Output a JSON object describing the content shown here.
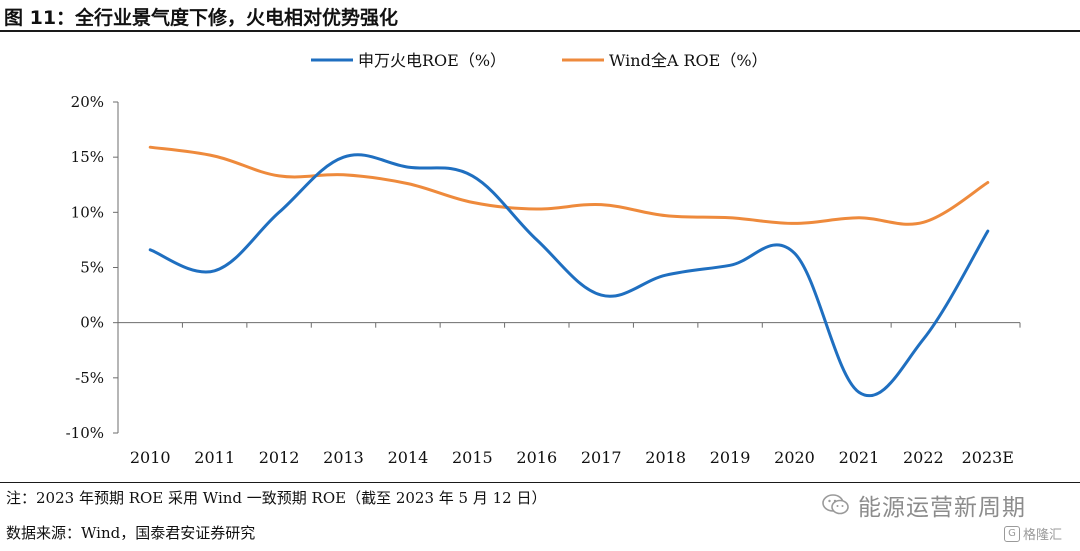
{
  "figure": {
    "title": "图 11：全行业景气度下修，火电相对优势强化",
    "note": "注：2023 年预期 ROE 采用 Wind 一致预期 ROE（截至 2023 年 5 月 12 日）",
    "source": "数据来源：Wind，国泰君安证券研究"
  },
  "watermark": {
    "name": "能源运营新周期",
    "icon": "wechat-icon",
    "badge_text": "格隆汇",
    "badge_icon": "g-logo-icon"
  },
  "chart_data": {
    "type": "line",
    "title": "",
    "xlabel": "",
    "ylabel": "",
    "categories": [
      "2010",
      "2011",
      "2012",
      "2013",
      "2014",
      "2015",
      "2016",
      "2017",
      "2018",
      "2019",
      "2020",
      "2021",
      "2022",
      "2023E"
    ],
    "ylim": [
      -10,
      20
    ],
    "yticks": [
      -10,
      -5,
      0,
      5,
      10,
      15,
      20
    ],
    "ytick_labels": [
      "-10%",
      "-5%",
      "0%",
      "5%",
      "10%",
      "15%",
      "20%"
    ],
    "grid": false,
    "legend_position": "top-center",
    "series": [
      {
        "name": "申万火电ROE（%）",
        "color": "#1f6fc0",
        "values": [
          6.6,
          4.7,
          10.0,
          15.0,
          14.1,
          13.3,
          7.5,
          2.5,
          4.3,
          5.2,
          6.3,
          -6.3,
          -1.5,
          8.3
        ]
      },
      {
        "name": "Wind全A ROE（%）",
        "color": "#ee8a3c",
        "values": [
          15.9,
          15.1,
          13.3,
          13.4,
          12.6,
          10.9,
          10.3,
          10.7,
          9.7,
          9.5,
          9.0,
          9.5,
          9.1,
          12.7
        ]
      }
    ]
  }
}
